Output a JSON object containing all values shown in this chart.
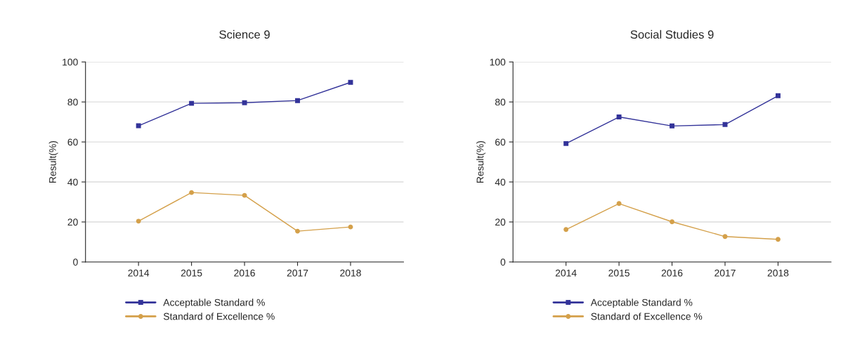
{
  "chart_data": [
    {
      "type": "line",
      "title": "Science 9",
      "ylabel": "Result(%)",
      "categories": [
        "2014",
        "2015",
        "2016",
        "2017",
        "2018"
      ],
      "ylim": [
        0,
        100
      ],
      "yticks": [
        0,
        20,
        40,
        60,
        80,
        100
      ],
      "grid": "y",
      "legend": "bottom",
      "series": [
        {
          "name": "Acceptable Standard %",
          "color": "#333399",
          "marker": "square",
          "values": [
            68.1,
            79.3,
            79.6,
            80.7,
            89.8
          ]
        },
        {
          "name": "Standard of Excellence %",
          "color": "#d4a04a",
          "marker": "circle",
          "values": [
            20.4,
            34.7,
            33.3,
            15.4,
            17.5
          ]
        }
      ]
    },
    {
      "type": "line",
      "title": "Social Studies 9",
      "ylabel": "Result(%)",
      "categories": [
        "2014",
        "2015",
        "2016",
        "2017",
        "2018"
      ],
      "ylim": [
        0,
        100
      ],
      "yticks": [
        0,
        20,
        40,
        60,
        80,
        100
      ],
      "grid": "y",
      "legend": "bottom",
      "series": [
        {
          "name": "Acceptable Standard %",
          "color": "#333399",
          "marker": "square",
          "values": [
            59.2,
            72.5,
            68.0,
            68.7,
            83.1
          ]
        },
        {
          "name": "Standard of Excellence %",
          "color": "#d4a04a",
          "marker": "circle",
          "values": [
            16.2,
            29.2,
            20.1,
            12.7,
            11.3
          ]
        }
      ]
    }
  ]
}
